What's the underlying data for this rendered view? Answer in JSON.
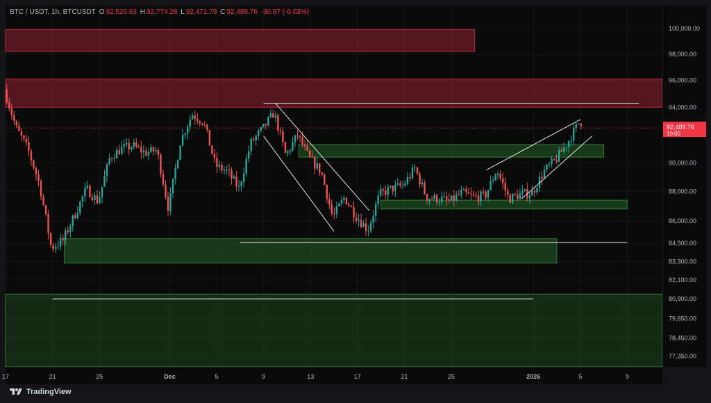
{
  "header": {
    "symbol": "BTC / USDT, 1h, BTCUSDT",
    "open_label": "O",
    "open": "92,520.63",
    "high_label": "H",
    "high": "92,774.28",
    "low_label": "L",
    "low": "92,471.79",
    "close_label": "C",
    "close": "92,489.76",
    "change": "-30.87 (-0.03%)"
  },
  "last_price": {
    "value": "92,489.76",
    "countdown": "10:00",
    "color": "#f23645"
  },
  "footer": {
    "brand": "TradingView"
  },
  "colors": {
    "supply_zone": "#b2283a",
    "demand_zone": "#2e7d32",
    "bull": "#26a69a",
    "bear": "#ef5350",
    "drawing": "#e8e8e8"
  },
  "chart_data": {
    "type": "candlestick",
    "title": "BTC / USDT, 1h, BTCUSDT",
    "y_scale": "log",
    "ylim": [
      76700,
      101800
    ],
    "y_ticks": [
      100000,
      98000,
      96000,
      94000,
      90000,
      88000,
      86000,
      84500,
      83300,
      82100,
      80900,
      79650,
      78450,
      77350
    ],
    "y_tick_labels": [
      "100,000.00",
      "98,000.00",
      "96,000.00",
      "94,000.00",
      "90,000.00",
      "88,000.00",
      "86,000.00",
      "84,500.00",
      "83,300.00",
      "82,100.00",
      "80,900.00",
      "79,650.00",
      "78,450.00",
      "77,350.00"
    ],
    "x_range": [
      "2025-11-17",
      "2026-01-12"
    ],
    "x_ticks": [
      "2025-11-17",
      "2025-11-21",
      "2025-11-25",
      "2025-12-01",
      "2025-12-05",
      "2025-12-09",
      "2025-12-13",
      "2025-12-17",
      "2025-12-21",
      "2025-12-25",
      "2026-01-01",
      "2026-01-05",
      "2026-01-09"
    ],
    "x_tick_labels": [
      "17",
      "21",
      "25",
      "Dec",
      "5",
      "9",
      "13",
      "17",
      "21",
      "25",
      "2026",
      "5",
      "9"
    ],
    "price_path": [
      [
        "2025-11-17",
        95300
      ],
      [
        "2025-11-18",
        92500
      ],
      [
        "2025-11-19",
        91000
      ],
      [
        "2025-11-20",
        88500
      ],
      [
        "2025-11-21",
        84200
      ],
      [
        "2025-11-22",
        84700
      ],
      [
        "2025-11-23",
        86400
      ],
      [
        "2025-11-24",
        88200
      ],
      [
        "2025-11-25",
        87300
      ],
      [
        "2025-11-26",
        90400
      ],
      [
        "2025-11-27",
        91000
      ],
      [
        "2025-11-28",
        91200
      ],
      [
        "2025-11-29",
        90700
      ],
      [
        "2025-11-30",
        90900
      ],
      [
        "2025-12-01",
        86800
      ],
      [
        "2025-12-02",
        91500
      ],
      [
        "2025-12-03",
        93500
      ],
      [
        "2025-12-04",
        92900
      ],
      [
        "2025-12-05",
        89800
      ],
      [
        "2025-12-06",
        89400
      ],
      [
        "2025-12-07",
        88200
      ],
      [
        "2025-12-08",
        91400
      ],
      [
        "2025-12-09",
        92400
      ],
      [
        "2025-12-10",
        93600
      ],
      [
        "2025-12-11",
        90500
      ],
      [
        "2025-12-12",
        92000
      ],
      [
        "2025-12-13",
        90300
      ],
      [
        "2025-12-14",
        89400
      ],
      [
        "2025-12-15",
        86200
      ],
      [
        "2025-12-16",
        87600
      ],
      [
        "2025-12-17",
        86300
      ],
      [
        "2025-12-18",
        85400
      ],
      [
        "2025-12-19",
        87800
      ],
      [
        "2025-12-20",
        88200
      ],
      [
        "2025-12-21",
        88400
      ],
      [
        "2025-12-22",
        89600
      ],
      [
        "2025-12-23",
        87600
      ],
      [
        "2025-12-24",
        87500
      ],
      [
        "2025-12-25",
        87300
      ],
      [
        "2025-12-26",
        87900
      ],
      [
        "2025-12-27",
        87600
      ],
      [
        "2025-12-28",
        87700
      ],
      [
        "2025-12-29",
        89500
      ],
      [
        "2025-12-30",
        87500
      ],
      [
        "2025-12-31",
        87800
      ],
      [
        "2026-01-01",
        87900
      ],
      [
        "2026-01-02",
        89400
      ],
      [
        "2026-01-03",
        90200
      ],
      [
        "2026-01-04",
        91400
      ],
      [
        "2026-01-05",
        92900
      ]
    ],
    "supply_zones": [
      {
        "from": "2025-11-17",
        "to": "2025-12-27",
        "low": 98200,
        "high": 99900
      },
      {
        "from": "2025-11-17",
        "to": "2026-01-12",
        "low": 94000,
        "high": 96100
      }
    ],
    "demand_zones": [
      {
        "from": "2025-12-12",
        "to": "2026-01-07",
        "low": 90400,
        "high": 91300
      },
      {
        "from": "2025-12-19",
        "to": "2026-01-09",
        "low": 86800,
        "high": 87400
      },
      {
        "from": "2025-11-22",
        "to": "2026-01-03",
        "low": 83200,
        "high": 84800
      },
      {
        "from": "2025-11-17",
        "to": "2026-01-12",
        "low": 76700,
        "high": 81200
      }
    ],
    "horizontal_lines": [
      {
        "from": "2025-12-09",
        "to": "2026-01-10",
        "price": 94300
      },
      {
        "from": "2025-12-07",
        "to": "2026-01-09",
        "price": 84550
      },
      {
        "from": "2025-11-21",
        "to": "2026-01-01",
        "price": 80900
      }
    ],
    "trend_lines": [
      {
        "from": [
          "2025-12-10",
          94300
        ],
        "to": [
          "2025-12-18",
          86700
        ]
      },
      {
        "from": [
          "2025-12-09",
          91900
        ],
        "to": [
          "2025-12-15",
          85300
        ]
      },
      {
        "from": [
          "2025-12-28",
          89500
        ],
        "to": [
          "2026-01-05",
          93100
        ]
      },
      {
        "from": [
          "2025-12-31",
          87500
        ],
        "to": [
          "2026-01-06",
          91900
        ]
      }
    ],
    "last_price_line": 92489.76
  }
}
